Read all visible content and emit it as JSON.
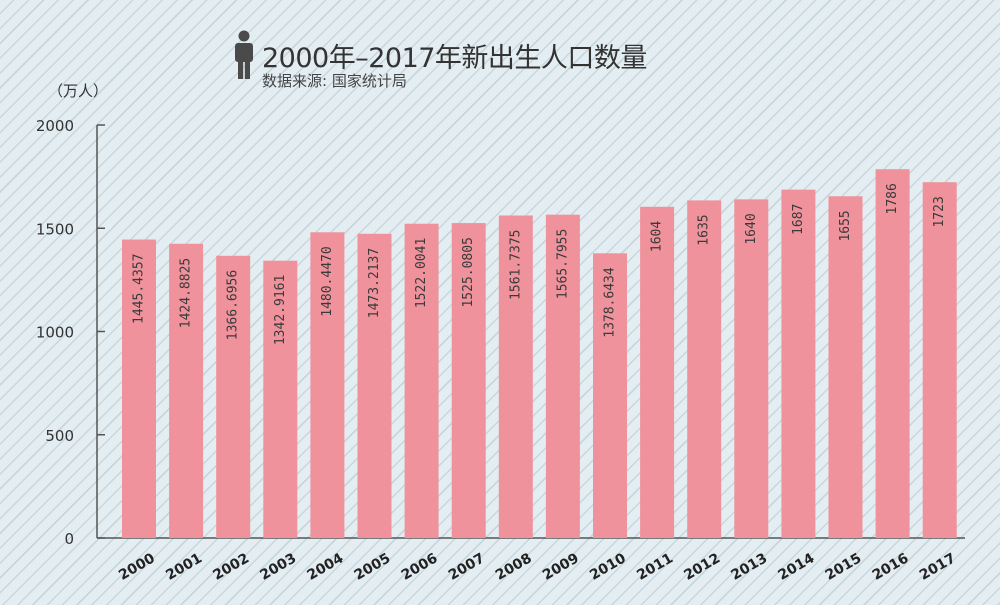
{
  "header": {
    "title": "2000年–2017年新出生人口数量",
    "subtitle": "数据来源: 国家统计局",
    "unit": "（万人）",
    "icon": "person-icon"
  },
  "colors": {
    "bar": "#f0929c",
    "axis": "#555555",
    "label": "#333333"
  },
  "chart_data": {
    "type": "bar",
    "title": "2000年–2017年新出生人口数量",
    "subtitle": "数据来源: 国家统计局",
    "ylabel": "（万人）",
    "xlabel": "",
    "ylim": [
      0,
      2000
    ],
    "yticks": [
      "0",
      "500",
      "1000",
      "1500",
      "2000"
    ],
    "grid": false,
    "categories": [
      "2000",
      "2001",
      "2002",
      "2003",
      "2004",
      "2005",
      "2006",
      "2007",
      "2008",
      "2009",
      "2010",
      "2011",
      "2012",
      "2013",
      "2014",
      "2015",
      "2016",
      "2017"
    ],
    "values": [
      1445.4357,
      1424.8825,
      1366.6956,
      1342.9161,
      1480.447,
      1473.2137,
      1522.0041,
      1525.0805,
      1561.7375,
      1565.7955,
      1378.6434,
      1604,
      1635,
      1640,
      1687,
      1655,
      1786,
      1723
    ],
    "value_labels": [
      "1445.4357",
      "1424.8825",
      "1366.6956",
      "1342.9161",
      "1480.4470",
      "1473.2137",
      "1522.0041",
      "1525.0805",
      "1561.7375",
      "1565.7955",
      "1378.6434",
      "1604",
      "1635",
      "1640",
      "1687",
      "1655",
      "1786",
      "1723"
    ]
  }
}
